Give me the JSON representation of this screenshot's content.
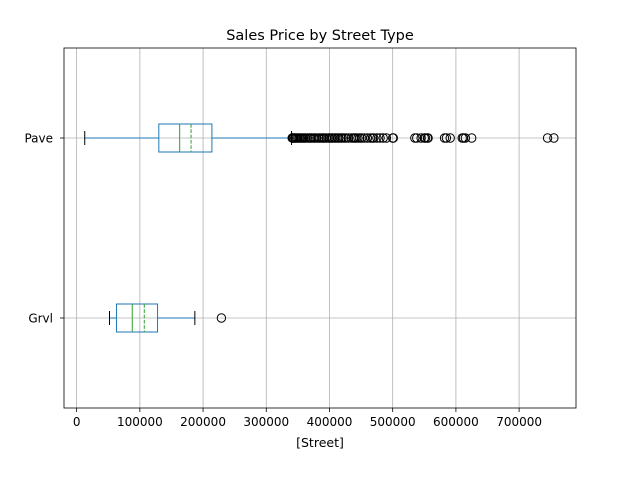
{
  "chart_data": {
    "type": "box",
    "title": "Sales Price by Street Type",
    "xlabel": "[Street]",
    "ylabel": "",
    "orientation": "horizontal",
    "xlim": [
      -20000,
      790000
    ],
    "x_ticks": [
      {
        "value": 0,
        "label": "0"
      },
      {
        "value": 100000,
        "label": "100000"
      },
      {
        "value": 200000,
        "label": "200000"
      },
      {
        "value": 300000,
        "label": "300000"
      },
      {
        "value": 400000,
        "label": "400000"
      },
      {
        "value": 500000,
        "label": "500000"
      },
      {
        "value": 600000,
        "label": "600000"
      },
      {
        "value": 700000,
        "label": "700000"
      }
    ],
    "grid": true,
    "categories": [
      "Pave",
      "Grvl"
    ],
    "boxes": [
      {
        "category": "Pave",
        "whisker_low": 12800,
        "q1": 130000,
        "median": 163000,
        "mean": 181000,
        "q3": 214000,
        "whisker_high": 340000,
        "outliers": [
          341000,
          342000,
          343000,
          345000,
          346000,
          348000,
          350000,
          352000,
          354000,
          356000,
          358000,
          360000,
          362000,
          365000,
          368000,
          370000,
          372000,
          375000,
          377000,
          380000,
          383000,
          385000,
          388000,
          390000,
          392000,
          395000,
          398000,
          400000,
          403000,
          405000,
          408000,
          410000,
          413000,
          415000,
          418000,
          420000,
          423000,
          426000,
          430000,
          435000,
          438000,
          440000,
          442000,
          445000,
          448000,
          451000,
          455000,
          460000,
          465000,
          468000,
          470000,
          475000,
          480000,
          485000,
          490000,
          500000,
          501000,
          535000,
          538000,
          545000,
          550000,
          552000,
          555000,
          556000,
          582000,
          585000,
          591000,
          610000,
          612000,
          615000,
          625000,
          745000,
          755000
        ]
      },
      {
        "category": "Grvl",
        "whisker_low": 52000,
        "q1": 63000,
        "median": 88000,
        "mean": 107000,
        "q3": 128000,
        "whisker_high": 187000,
        "outliers": [
          229000
        ]
      }
    ],
    "colors": {
      "box": "#1f77b4",
      "median": "#2ca02c",
      "mean": "#2ca02c",
      "whisker": "#1f77b4",
      "cap": "#000000",
      "outlier": "#000000",
      "grid": "#b0b0b0"
    }
  }
}
